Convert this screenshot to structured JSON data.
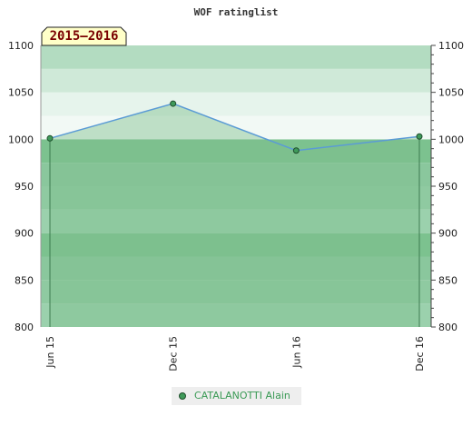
{
  "chart_data": {
    "type": "area",
    "title": "WOF ratinglist",
    "season_label": "2015–2016",
    "x": [
      "Jun 15",
      "Dec 15",
      "Jun 16",
      "Dec 16"
    ],
    "series": [
      {
        "name": "CATALANOTTI Alain",
        "values": [
          1001,
          1038,
          988,
          1003
        ]
      }
    ],
    "y_ticks": [
      800,
      850,
      900,
      950,
      1000,
      1050,
      1100
    ],
    "ylim": [
      800,
      1100
    ],
    "xlabel": "",
    "ylabel": "",
    "grid": true,
    "legend_position": "bottom",
    "colors": {
      "line": "#5b9bd5",
      "fill": "#7fbf8f",
      "marker": "#3f9a5a",
      "band_top": "#b3dcc1",
      "band_light": "#cfe9d8",
      "band_mid": "#8fcaa1",
      "band_dark": "#7cc28f"
    }
  }
}
